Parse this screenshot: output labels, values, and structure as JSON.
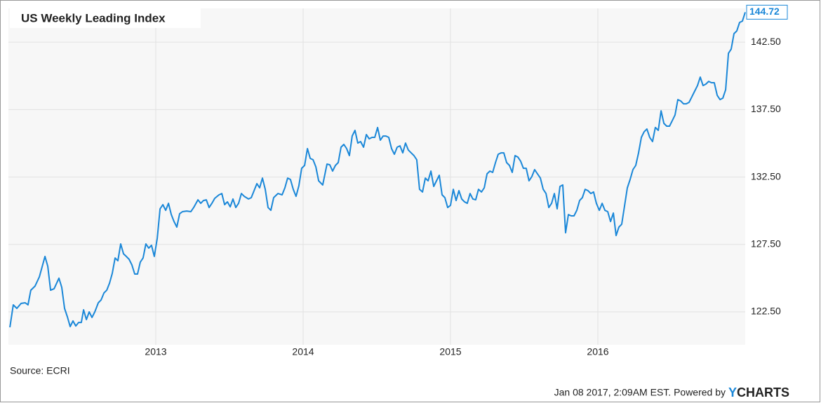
{
  "chart_data": {
    "type": "line",
    "title": "US Weekly Leading Index",
    "x": [
      2012.01,
      2012.033,
      2012.057,
      2012.086,
      2012.114,
      2012.133,
      2012.152,
      2012.181,
      2012.21,
      2012.248,
      2012.267,
      2012.286,
      2012.31,
      2012.343,
      2012.362,
      2012.381,
      2012.4,
      2012.419,
      2012.438,
      2012.457,
      2012.476,
      2012.495,
      2012.51,
      2012.529,
      2012.548,
      2012.567,
      2012.586,
      2012.61,
      2012.629,
      2012.648,
      2012.667,
      2012.686,
      2012.705,
      2012.724,
      2012.743,
      2012.762,
      2012.781,
      2012.8,
      2012.819,
      2012.838,
      2012.857,
      2012.876,
      2012.895,
      2012.914,
      2012.933,
      2012.952,
      2012.971,
      2012.99,
      2013.01,
      2013.029,
      2013.048,
      2013.067,
      2013.086,
      2013.105,
      2013.124,
      2013.143,
      2013.162,
      2013.181,
      2013.21,
      2013.238,
      2013.257,
      2013.286,
      2013.305,
      2013.324,
      2013.343,
      2013.362,
      2013.381,
      2013.4,
      2013.429,
      2013.448,
      2013.467,
      2013.486,
      2013.505,
      2013.524,
      2013.543,
      2013.562,
      2013.581,
      2013.6,
      2013.629,
      2013.648,
      2013.667,
      2013.686,
      2013.705,
      2013.724,
      2013.743,
      2013.762,
      2013.781,
      2013.8,
      2013.829,
      2013.857,
      2013.876,
      2013.895,
      2013.914,
      2013.933,
      2013.952,
      2013.971,
      2013.99,
      2014.01,
      2014.029,
      2014.048,
      2014.067,
      2014.086,
      2014.105,
      2014.133,
      2014.162,
      2014.181,
      2014.2,
      2014.219,
      2014.238,
      2014.257,
      2014.276,
      2014.295,
      2014.314,
      2014.333,
      2014.352,
      2014.371,
      2014.39,
      2014.41,
      2014.429,
      2014.448,
      2014.467,
      2014.486,
      2014.505,
      2014.524,
      2014.543,
      2014.562,
      2014.581,
      2014.6,
      2014.619,
      2014.638,
      2014.657,
      2014.676,
      2014.695,
      2014.714,
      2014.733,
      2014.752,
      2014.771,
      2014.79,
      2014.81,
      2014.829,
      2014.848,
      2014.867,
      2014.886,
      2014.905,
      2014.924,
      2014.943,
      2014.962,
      2014.981,
      2015.0,
      2015.019,
      2015.038,
      2015.057,
      2015.076,
      2015.095,
      2015.114,
      2015.133,
      2015.152,
      2015.171,
      2015.19,
      2015.21,
      2015.229,
      2015.248,
      2015.267,
      2015.286,
      2015.305,
      2015.324,
      2015.343,
      2015.362,
      2015.381,
      2015.4,
      2015.419,
      2015.438,
      2015.457,
      2015.476,
      2015.495,
      2015.514,
      2015.533,
      2015.552,
      2015.571,
      2015.59,
      2015.61,
      2015.629,
      2015.648,
      2015.667,
      2015.686,
      2015.705,
      2015.724,
      2015.743,
      2015.762,
      2015.781,
      2015.8,
      2015.819,
      2015.838,
      2015.857,
      2015.876,
      2015.895,
      2015.914,
      2015.933,
      2015.952,
      2015.971,
      2015.99,
      2016.01,
      2016.029,
      2016.048,
      2016.067,
      2016.086,
      2016.105,
      2016.124,
      2016.143,
      2016.162,
      2016.181,
      2016.2,
      2016.219,
      2016.238,
      2016.257,
      2016.276,
      2016.295,
      2016.314,
      2016.333,
      2016.352,
      2016.371,
      2016.39,
      2016.41,
      2016.429,
      2016.448,
      2016.467,
      2016.486,
      2016.505,
      2016.524,
      2016.543,
      2016.562,
      2016.581,
      2016.6,
      2016.619,
      2016.638,
      2016.657,
      2016.676,
      2016.695,
      2016.714,
      2016.733,
      2016.752,
      2016.771,
      2016.79,
      2016.81,
      2016.829,
      2016.848,
      2016.867,
      2016.886,
      2016.905,
      2016.924,
      2016.943,
      2016.962,
      2016.981,
      2017.0
    ],
    "values": [
      121.36,
      123.02,
      122.76,
      123.13,
      123.18,
      123.02,
      124.11,
      124.42,
      125.1,
      126.61,
      125.88,
      124.11,
      124.22,
      125.0,
      124.32,
      122.76,
      122.14,
      121.41,
      121.83,
      121.46,
      121.72,
      121.72,
      122.66,
      121.93,
      122.5,
      122.09,
      122.5,
      123.18,
      123.39,
      123.9,
      124.11,
      124.63,
      125.36,
      126.5,
      126.29,
      127.54,
      126.81,
      126.61,
      126.4,
      125.98,
      125.31,
      125.31,
      126.19,
      126.5,
      127.54,
      127.23,
      127.44,
      126.61,
      127.96,
      130.14,
      130.45,
      130.03,
      130.55,
      129.72,
      129.2,
      128.79,
      129.78,
      129.93,
      129.98,
      129.93,
      130.24,
      130.81,
      130.55,
      130.76,
      130.81,
      130.24,
      130.55,
      130.92,
      131.18,
      131.28,
      130.45,
      130.66,
      130.29,
      130.87,
      130.24,
      130.55,
      131.28,
      131.07,
      130.87,
      130.97,
      131.49,
      132.01,
      131.7,
      132.42,
      131.59,
      130.24,
      130.03,
      130.97,
      131.28,
      131.18,
      131.7,
      132.42,
      132.32,
      131.59,
      131.07,
      131.85,
      133.15,
      133.36,
      134.61,
      133.88,
      133.78,
      133.26,
      132.22,
      131.91,
      133.46,
      133.41,
      132.94,
      133.36,
      133.57,
      134.71,
      134.92,
      134.61,
      134.09,
      135.54,
      135.96,
      135.02,
      135.13,
      134.71,
      135.65,
      135.33,
      135.44,
      135.44,
      136.17,
      135.23,
      135.54,
      135.54,
      135.44,
      134.61,
      134.19,
      134.71,
      134.81,
      134.29,
      135.02,
      134.5,
      134.29,
      134.09,
      133.78,
      131.59,
      131.39,
      132.42,
      132.22,
      132.94,
      131.8,
      132.22,
      132.63,
      131.18,
      130.97,
      130.24,
      130.4,
      131.59,
      130.76,
      131.49,
      130.87,
      130.66,
      130.55,
      131.28,
      130.87,
      130.81,
      131.59,
      131.39,
      131.7,
      132.74,
      132.94,
      132.84,
      133.57,
      134.19,
      134.29,
      134.29,
      133.57,
      133.36,
      132.84,
      134.09,
      133.98,
      133.67,
      133.15,
      133.15,
      132.22,
      132.53,
      133.05,
      132.74,
      132.42,
      131.59,
      131.28,
      130.24,
      130.55,
      131.28,
      130.14,
      131.8,
      131.91,
      128.37,
      129.72,
      129.62,
      129.62,
      130.03,
      130.76,
      130.97,
      131.59,
      131.49,
      131.28,
      131.39,
      130.55,
      130.03,
      130.55,
      130.03,
      129.93,
      129.2,
      129.83,
      128.16,
      128.79,
      129.0,
      130.35,
      131.7,
      132.32,
      133.05,
      133.36,
      134.29,
      135.44,
      135.85,
      136.06,
      135.44,
      135.13,
      136.17,
      135.96,
      137.41,
      136.48,
      136.27,
      136.27,
      136.68,
      137.1,
      138.24,
      138.14,
      137.93,
      137.93,
      138.04,
      138.45,
      138.87,
      139.28,
      139.91,
      139.28,
      139.39,
      139.59,
      139.49,
      139.49,
      138.55,
      138.24,
      138.35,
      138.97,
      141.67,
      141.98,
      143.13,
      143.33,
      143.96,
      144.06,
      144.72
    ],
    "color": "#1a87d8",
    "xlim": [
      2012,
      2017
    ],
    "xticks": [
      2013,
      2014,
      2015,
      2016
    ],
    "ylim": [
      120.06,
      145
    ],
    "yticks": [
      {
        "value": 122.5,
        "label": "122.50"
      },
      {
        "value": 127.5,
        "label": "127.50"
      },
      {
        "value": 132.5,
        "label": "132.50"
      },
      {
        "value": 137.5,
        "label": "137.50"
      },
      {
        "value": 142.5,
        "label": "142.50"
      }
    ],
    "grid": true,
    "source": "Source: ECRI",
    "timestamp": "Jan 08 2017, 2:09AM EST. Powered by",
    "logo": [
      "Y",
      "CHARTS"
    ]
  }
}
